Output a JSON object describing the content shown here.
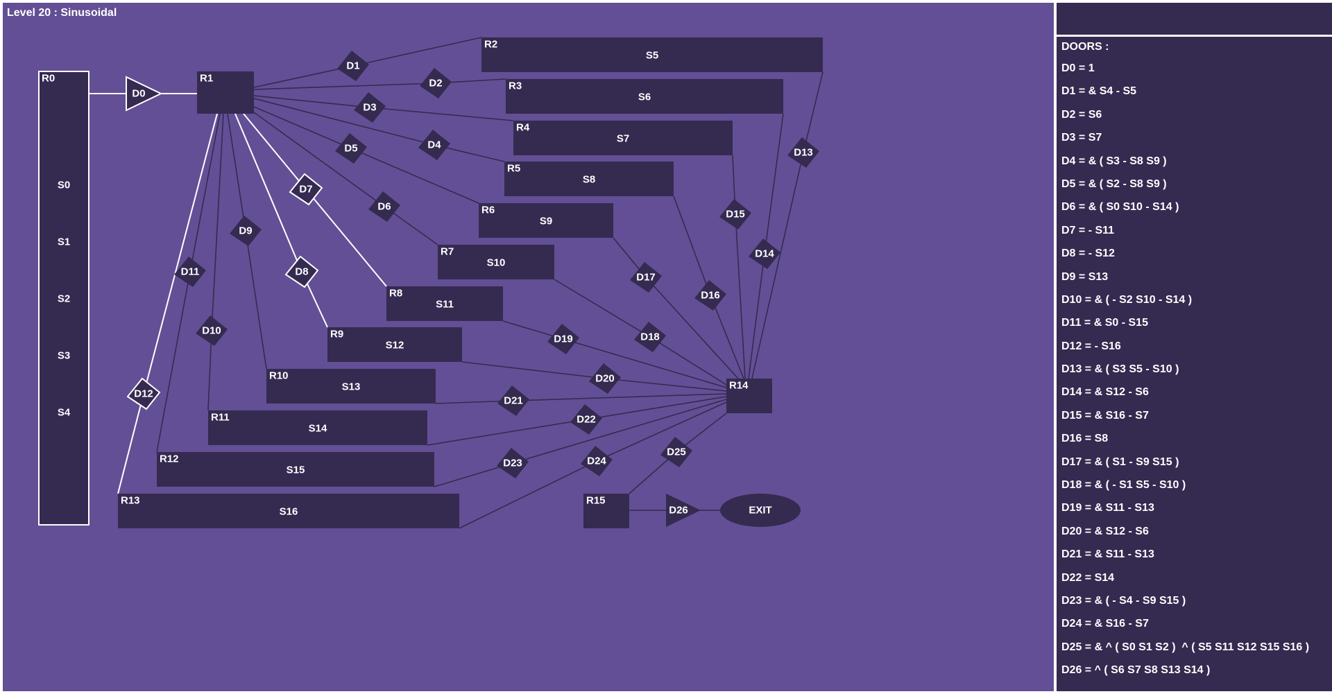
{
  "title": "Level 20 : Sinusoidal",
  "colors": {
    "background": "#634f95",
    "node_fill": "#352a50",
    "stroke_dark": "#352a50",
    "stroke_highlight": "#ffffff",
    "text": "#ffffff"
  },
  "rooms": [
    {
      "id": "R0",
      "label": "R0",
      "highlighted": true,
      "switches": [
        "S0",
        "S1",
        "S2",
        "S3",
        "S4"
      ]
    },
    {
      "id": "R1",
      "label": "R1",
      "highlighted": false,
      "switches": []
    },
    {
      "id": "R2",
      "label": "R2",
      "highlighted": false,
      "switches": [
        "S5"
      ]
    },
    {
      "id": "R3",
      "label": "R3",
      "highlighted": false,
      "switches": [
        "S6"
      ]
    },
    {
      "id": "R4",
      "label": "R4",
      "highlighted": false,
      "switches": [
        "S7"
      ]
    },
    {
      "id": "R5",
      "label": "R5",
      "highlighted": false,
      "switches": [
        "S8"
      ]
    },
    {
      "id": "R6",
      "label": "R6",
      "highlighted": false,
      "switches": [
        "S9"
      ]
    },
    {
      "id": "R7",
      "label": "R7",
      "highlighted": false,
      "switches": [
        "S10"
      ]
    },
    {
      "id": "R8",
      "label": "R8",
      "highlighted": false,
      "switches": [
        "S11"
      ]
    },
    {
      "id": "R9",
      "label": "R9",
      "highlighted": false,
      "switches": [
        "S12"
      ]
    },
    {
      "id": "R10",
      "label": "R10",
      "highlighted": false,
      "switches": [
        "S13"
      ]
    },
    {
      "id": "R11",
      "label": "R11",
      "highlighted": false,
      "switches": [
        "S14"
      ]
    },
    {
      "id": "R12",
      "label": "R12",
      "highlighted": false,
      "switches": [
        "S15"
      ]
    },
    {
      "id": "R13",
      "label": "R13",
      "highlighted": false,
      "switches": [
        "S16"
      ]
    },
    {
      "id": "R14",
      "label": "R14",
      "highlighted": false,
      "switches": []
    },
    {
      "id": "R15",
      "label": "R15",
      "highlighted": false,
      "switches": []
    }
  ],
  "exit": {
    "id": "EXIT",
    "label": "EXIT"
  },
  "doors": [
    {
      "id": "D0",
      "label": "D0",
      "shape": "triangle",
      "from": "R0",
      "to": "R1",
      "highlighted": true
    },
    {
      "id": "D1",
      "label": "D1",
      "shape": "diamond",
      "from": "R1",
      "to": "R2",
      "highlighted": false
    },
    {
      "id": "D2",
      "label": "D2",
      "shape": "diamond",
      "from": "R1",
      "to": "R3",
      "highlighted": false
    },
    {
      "id": "D3",
      "label": "D3",
      "shape": "diamond",
      "from": "R1",
      "to": "R4",
      "highlighted": false
    },
    {
      "id": "D4",
      "label": "D4",
      "shape": "diamond",
      "from": "R1",
      "to": "R5",
      "highlighted": false
    },
    {
      "id": "D5",
      "label": "D5",
      "shape": "diamond",
      "from": "R1",
      "to": "R6",
      "highlighted": false
    },
    {
      "id": "D6",
      "label": "D6",
      "shape": "diamond",
      "from": "R1",
      "to": "R7",
      "highlighted": false
    },
    {
      "id": "D7",
      "label": "D7",
      "shape": "diamond",
      "from": "R1",
      "to": "R8",
      "highlighted": true
    },
    {
      "id": "D8",
      "label": "D8",
      "shape": "diamond",
      "from": "R1",
      "to": "R9",
      "highlighted": true
    },
    {
      "id": "D9",
      "label": "D9",
      "shape": "diamond",
      "from": "R1",
      "to": "R10",
      "highlighted": false
    },
    {
      "id": "D10",
      "label": "D10",
      "shape": "diamond",
      "from": "R1",
      "to": "R11",
      "highlighted": false
    },
    {
      "id": "D11",
      "label": "D11",
      "shape": "diamond",
      "from": "R1",
      "to": "R12",
      "highlighted": false
    },
    {
      "id": "D12",
      "label": "D12",
      "shape": "diamond",
      "from": "R1",
      "to": "R13",
      "highlighted": true
    },
    {
      "id": "D13",
      "label": "D13",
      "shape": "diamond",
      "from": "R2",
      "to": "R14",
      "highlighted": false
    },
    {
      "id": "D14",
      "label": "D14",
      "shape": "diamond",
      "from": "R3",
      "to": "R14",
      "highlighted": false
    },
    {
      "id": "D15",
      "label": "D15",
      "shape": "diamond",
      "from": "R4",
      "to": "R14",
      "highlighted": false
    },
    {
      "id": "D16",
      "label": "D16",
      "shape": "diamond",
      "from": "R5",
      "to": "R14",
      "highlighted": false
    },
    {
      "id": "D17",
      "label": "D17",
      "shape": "diamond",
      "from": "R6",
      "to": "R14",
      "highlighted": false
    },
    {
      "id": "D18",
      "label": "D18",
      "shape": "diamond",
      "from": "R7",
      "to": "R14",
      "highlighted": false
    },
    {
      "id": "D19",
      "label": "D19",
      "shape": "diamond",
      "from": "R8",
      "to": "R14",
      "highlighted": false
    },
    {
      "id": "D20",
      "label": "D20",
      "shape": "diamond",
      "from": "R9",
      "to": "R14",
      "highlighted": false
    },
    {
      "id": "D21",
      "label": "D21",
      "shape": "diamond",
      "from": "R10",
      "to": "R14",
      "highlighted": false
    },
    {
      "id": "D22",
      "label": "D22",
      "shape": "diamond",
      "from": "R11",
      "to": "R14",
      "highlighted": false
    },
    {
      "id": "D23",
      "label": "D23",
      "shape": "diamond",
      "from": "R12",
      "to": "R14",
      "highlighted": false
    },
    {
      "id": "D24",
      "label": "D24",
      "shape": "diamond",
      "from": "R13",
      "to": "R14",
      "highlighted": false
    },
    {
      "id": "D25",
      "label": "D25",
      "shape": "diamond",
      "from": "R14",
      "to": "R15",
      "highlighted": false
    },
    {
      "id": "D26",
      "label": "D26",
      "shape": "triangle",
      "from": "R15",
      "to": "EXIT",
      "highlighted": false
    }
  ],
  "sidebar": {
    "heading": "DOORS :",
    "conditions": [
      "D0 = 1",
      "D1 = & S4 - S5",
      "D2 = S6",
      "D3 = S7",
      "D4 = & ( S3 - S8 S9 )",
      "D5 = & ( S2 - S8 S9 )",
      "D6 = & ( S0 S10 - S14 )",
      "D7 = - S11",
      "D8 = - S12",
      "D9 = S13",
      "D10 = & ( - S2 S10 - S14 )",
      "D11 = & S0 - S15",
      "D12 = - S16",
      "D13 = & ( S3 S5 - S10 )",
      "D14 = & S12 - S6",
      "D15 = & S16 - S7",
      "D16 = S8",
      "D17 = & ( S1 - S9 S15 )",
      "D18 = & ( - S1 S5 - S10 )",
      "D19 = & S11 - S13",
      "D20 = & S12 - S6",
      "D21 = & S11 - S13",
      "D22 = S14",
      "D23 = & ( - S4 - S9 S15 )",
      "D24 = & S16 - S7",
      "D25 = & ^ ( S0 S1 S2 )  ^ ( S5 S11 S12 S15 S16 )",
      "D26 = ^ ( S6 S7 S8 S13 S14 )"
    ]
  }
}
